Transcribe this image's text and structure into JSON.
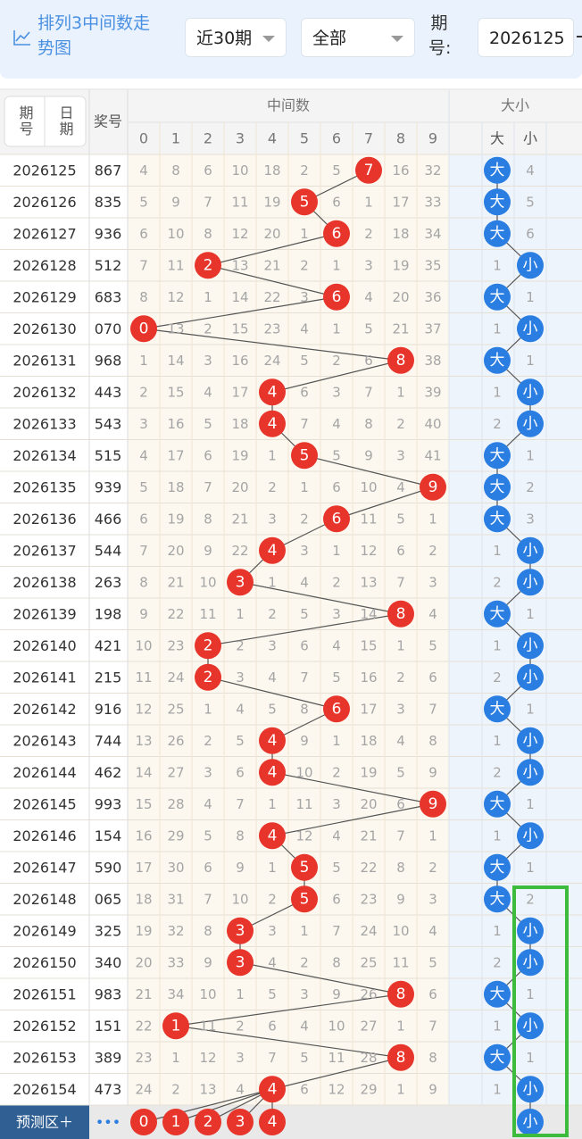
{
  "header": {
    "title": "排列3中间数走势图",
    "range": "近30期",
    "filter": "全部",
    "issue_label": "期号:",
    "issue_input": "2026125"
  },
  "table": {
    "toggle": [
      "期号",
      "日期"
    ],
    "draw_header": "奖号",
    "group_middle": "中间数",
    "group_size": "大小",
    "digits": [
      0,
      1,
      2,
      3,
      4,
      5,
      6,
      7,
      8,
      9
    ],
    "size_cols": [
      "大",
      "小"
    ],
    "rows": [
      {
        "issue": "2026125",
        "draw": "867",
        "cells": [
          4,
          8,
          6,
          10,
          18,
          2,
          5,
          {
            "ball": 7
          },
          16,
          32
        ],
        "size": [
          "大",
          4
        ]
      },
      {
        "issue": "2026126",
        "draw": "835",
        "cells": [
          5,
          9,
          7,
          11,
          19,
          {
            "ball": 5
          },
          6,
          1,
          17,
          33
        ],
        "size": [
          "大",
          5
        ]
      },
      {
        "issue": "2026127",
        "draw": "936",
        "cells": [
          6,
          10,
          8,
          12,
          20,
          1,
          {
            "ball": 6
          },
          2,
          18,
          34
        ],
        "size": [
          "大",
          6
        ]
      },
      {
        "issue": "2026128",
        "draw": "512",
        "cells": [
          7,
          11,
          {
            "ball": 2
          },
          13,
          21,
          2,
          1,
          3,
          19,
          35
        ],
        "size": [
          1,
          "小"
        ]
      },
      {
        "issue": "2026129",
        "draw": "683",
        "cells": [
          8,
          12,
          1,
          14,
          22,
          3,
          {
            "ball": 6
          },
          4,
          20,
          36
        ],
        "size": [
          "大",
          1
        ]
      },
      {
        "issue": "2026130",
        "draw": "070",
        "cells": [
          {
            "ball": 0
          },
          13,
          2,
          15,
          23,
          4,
          1,
          5,
          21,
          37
        ],
        "size": [
          1,
          "小"
        ]
      },
      {
        "issue": "2026131",
        "draw": "968",
        "cells": [
          1,
          14,
          3,
          16,
          24,
          5,
          2,
          6,
          {
            "ball": 8
          },
          38
        ],
        "size": [
          "大",
          1
        ]
      },
      {
        "issue": "2026132",
        "draw": "443",
        "cells": [
          2,
          15,
          4,
          17,
          {
            "ball": 4
          },
          6,
          3,
          7,
          1,
          39
        ],
        "size": [
          1,
          "小"
        ]
      },
      {
        "issue": "2026133",
        "draw": "543",
        "cells": [
          3,
          16,
          5,
          18,
          {
            "ball": 4
          },
          7,
          4,
          8,
          2,
          40
        ],
        "size": [
          2,
          "小"
        ]
      },
      {
        "issue": "2026134",
        "draw": "515",
        "cells": [
          4,
          17,
          6,
          19,
          1,
          {
            "ball": 5
          },
          5,
          9,
          3,
          41
        ],
        "size": [
          "大",
          1
        ]
      },
      {
        "issue": "2026135",
        "draw": "939",
        "cells": [
          5,
          18,
          7,
          20,
          2,
          1,
          6,
          10,
          4,
          {
            "ball": 9
          }
        ],
        "size": [
          "大",
          2
        ]
      },
      {
        "issue": "2026136",
        "draw": "466",
        "cells": [
          6,
          19,
          8,
          21,
          3,
          2,
          {
            "ball": 6
          },
          11,
          5,
          1
        ],
        "size": [
          "大",
          3
        ]
      },
      {
        "issue": "2026137",
        "draw": "544",
        "cells": [
          7,
          20,
          9,
          22,
          {
            "ball": 4
          },
          3,
          1,
          12,
          6,
          2
        ],
        "size": [
          1,
          "小"
        ]
      },
      {
        "issue": "2026138",
        "draw": "263",
        "cells": [
          8,
          21,
          10,
          {
            "ball": 3
          },
          1,
          4,
          2,
          13,
          7,
          3
        ],
        "size": [
          2,
          "小"
        ]
      },
      {
        "issue": "2026139",
        "draw": "198",
        "cells": [
          9,
          22,
          11,
          1,
          2,
          5,
          3,
          14,
          {
            "ball": 8
          },
          4
        ],
        "size": [
          "大",
          1
        ]
      },
      {
        "issue": "2026140",
        "draw": "421",
        "cells": [
          10,
          23,
          {
            "ball": 2
          },
          2,
          3,
          6,
          4,
          15,
          1,
          5
        ],
        "size": [
          1,
          "小"
        ]
      },
      {
        "issue": "2026141",
        "draw": "215",
        "cells": [
          11,
          24,
          {
            "ball": 2
          },
          3,
          4,
          7,
          5,
          16,
          2,
          6
        ],
        "size": [
          2,
          "小"
        ]
      },
      {
        "issue": "2026142",
        "draw": "916",
        "cells": [
          12,
          25,
          1,
          4,
          5,
          8,
          {
            "ball": 6
          },
          17,
          3,
          7
        ],
        "size": [
          "大",
          1
        ]
      },
      {
        "issue": "2026143",
        "draw": "744",
        "cells": [
          13,
          26,
          2,
          5,
          {
            "ball": 4
          },
          9,
          1,
          18,
          4,
          8
        ],
        "size": [
          1,
          "小"
        ]
      },
      {
        "issue": "2026144",
        "draw": "462",
        "cells": [
          14,
          27,
          3,
          6,
          {
            "ball": 4
          },
          10,
          2,
          19,
          5,
          9
        ],
        "size": [
          2,
          "小"
        ]
      },
      {
        "issue": "2026145",
        "draw": "993",
        "cells": [
          15,
          28,
          4,
          7,
          1,
          11,
          3,
          20,
          6,
          {
            "ball": 9
          }
        ],
        "size": [
          "大",
          1
        ]
      },
      {
        "issue": "2026146",
        "draw": "154",
        "cells": [
          16,
          29,
          5,
          8,
          {
            "ball": 4
          },
          12,
          4,
          21,
          7,
          1
        ],
        "size": [
          1,
          "小"
        ]
      },
      {
        "issue": "2026147",
        "draw": "590",
        "cells": [
          17,
          30,
          6,
          9,
          1,
          {
            "ball": 5
          },
          5,
          22,
          8,
          2
        ],
        "size": [
          "大",
          1
        ]
      },
      {
        "issue": "2026148",
        "draw": "065",
        "cells": [
          18,
          31,
          7,
          10,
          2,
          {
            "ball": 5
          },
          6,
          23,
          9,
          3
        ],
        "size": [
          "大",
          2
        ]
      },
      {
        "issue": "2026149",
        "draw": "325",
        "cells": [
          19,
          32,
          8,
          {
            "ball": 3
          },
          3,
          1,
          7,
          24,
          10,
          4
        ],
        "size": [
          1,
          "小"
        ]
      },
      {
        "issue": "2026150",
        "draw": "340",
        "cells": [
          20,
          33,
          9,
          {
            "ball": 3
          },
          4,
          2,
          8,
          25,
          11,
          5
        ],
        "size": [
          2,
          "小"
        ]
      },
      {
        "issue": "2026151",
        "draw": "983",
        "cells": [
          21,
          34,
          10,
          1,
          5,
          3,
          9,
          26,
          {
            "ball": 8
          },
          6
        ],
        "size": [
          "大",
          1
        ]
      },
      {
        "issue": "2026152",
        "draw": "151",
        "cells": [
          22,
          {
            "ball": 1
          },
          11,
          2,
          6,
          4,
          10,
          27,
          1,
          7
        ],
        "size": [
          1,
          "小"
        ]
      },
      {
        "issue": "2026153",
        "draw": "389",
        "cells": [
          23,
          1,
          12,
          3,
          7,
          5,
          11,
          28,
          {
            "ball": 8
          },
          8
        ],
        "size": [
          "大",
          1
        ]
      },
      {
        "issue": "2026154",
        "draw": "473",
        "cells": [
          24,
          2,
          13,
          4,
          {
            "ball": 4
          },
          6,
          12,
          29,
          1,
          9
        ],
        "size": [
          1,
          "小"
        ]
      }
    ]
  },
  "predict": {
    "label": "预测区＋",
    "more": "•••",
    "balls": [
      0,
      1,
      2,
      3,
      4
    ],
    "size": "小"
  }
}
